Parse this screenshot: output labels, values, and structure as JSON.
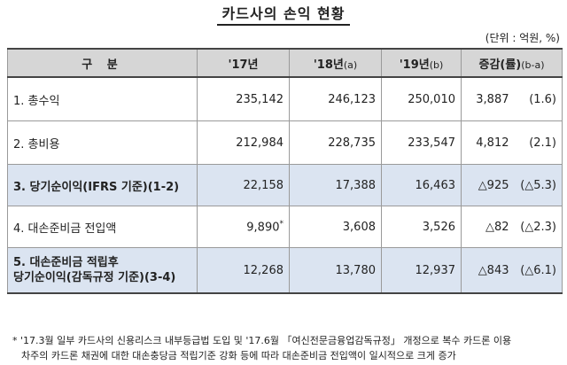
{
  "title": "카드사의 손익 현황",
  "unit": "(단위 : 억원, %)",
  "headers": {
    "category": "구 분",
    "y17": "'17년",
    "y18": "'18년",
    "y18_tag": "(a)",
    "y19": "'19년",
    "y19_tag": "(b)",
    "change": "증감(률)",
    "change_tag": "(b-a)"
  },
  "rows": [
    {
      "label": "1. 총수익",
      "v17": "235,142",
      "v18": "246,123",
      "v19": "250,010",
      "diff": "3,887",
      "rate": "(1.6)"
    },
    {
      "label": "2. 총비용",
      "v17": "212,984",
      "v18": "228,735",
      "v19": "233,547",
      "diff": "4,812",
      "rate": "(2.1)"
    },
    {
      "label": "3. 당기순이익(IFRS 기준)(1-2)",
      "v17": "22,158",
      "v18": "17,388",
      "v19": "16,463",
      "diff": "△925",
      "rate": "(△5.3)"
    },
    {
      "label": "4. 대손준비금 전입액",
      "v17": "9,890",
      "v17_mark": "*",
      "v18": "3,608",
      "v19": "3,526",
      "diff": "△82",
      "rate": "(△2.3)"
    },
    {
      "label_line1": "5. 대손준비금 적립후",
      "label_line2": "당기순이익(감독규정 기준)(3-4)",
      "v17": "12,268",
      "v18": "13,780",
      "v19": "12,937",
      "diff": "△843",
      "rate": "(△6.1)"
    }
  ],
  "footnote": {
    "line1": "* '17.3월 일부 카드사의 신용리스크 내부등급법 도입 및 '17.6월 「여신전문금융업감독규정」 개정으로 복수 카드론 이용",
    "line2": "차주의 카드론 채권에 대한 대손충당금 적립기준 강화 등에 따라 대손준비금 전입액이 일시적으로 크게 증가"
  }
}
